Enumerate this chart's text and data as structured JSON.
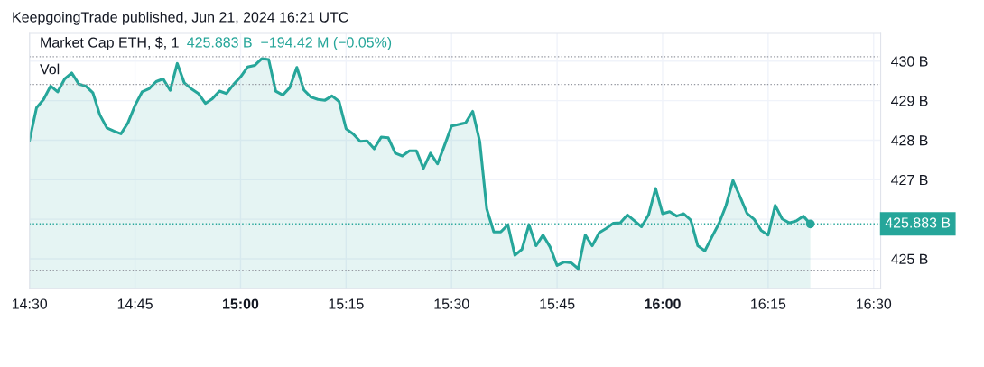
{
  "chart_data": {
    "type": "area",
    "title": "Market Cap ETH, $, 1",
    "subtitle": "425.883 B  −194.42 M (−0.05%)",
    "annotations": [
      "KeepgoingTrade published, Jun 21, 2024 16:21 UTC",
      "Vol",
      "425.883 B"
    ],
    "x": [
      "2024-06-21T14:30",
      "2024-06-21T14:31",
      "2024-06-21T14:32",
      "2024-06-21T14:33",
      "2024-06-21T14:34",
      "2024-06-21T14:35",
      "2024-06-21T14:36",
      "2024-06-21T14:37",
      "2024-06-21T14:38",
      "2024-06-21T14:39",
      "2024-06-21T14:40",
      "2024-06-21T14:41",
      "2024-06-21T14:42",
      "2024-06-21T14:43",
      "2024-06-21T14:44",
      "2024-06-21T14:45",
      "2024-06-21T14:46",
      "2024-06-21T14:47",
      "2024-06-21T14:48",
      "2024-06-21T14:49",
      "2024-06-21T14:50",
      "2024-06-21T14:51",
      "2024-06-21T14:52",
      "2024-06-21T14:53",
      "2024-06-21T14:54",
      "2024-06-21T14:55",
      "2024-06-21T14:56",
      "2024-06-21T14:57",
      "2024-06-21T14:58",
      "2024-06-21T14:59",
      "2024-06-21T15:00",
      "2024-06-21T15:01",
      "2024-06-21T15:02",
      "2024-06-21T15:03",
      "2024-06-21T15:04",
      "2024-06-21T15:05",
      "2024-06-21T15:06",
      "2024-06-21T15:07",
      "2024-06-21T15:08",
      "2024-06-21T15:09",
      "2024-06-21T15:10",
      "2024-06-21T15:11",
      "2024-06-21T15:12",
      "2024-06-21T15:13",
      "2024-06-21T15:14",
      "2024-06-21T15:15",
      "2024-06-21T15:16",
      "2024-06-21T15:17",
      "2024-06-21T15:18",
      "2024-06-21T15:19",
      "2024-06-21T15:20",
      "2024-06-21T15:21",
      "2024-06-21T15:22",
      "2024-06-21T15:23",
      "2024-06-21T15:24",
      "2024-06-21T15:25",
      "2024-06-21T15:26",
      "2024-06-21T15:27",
      "2024-06-21T15:28",
      "2024-06-21T15:29",
      "2024-06-21T15:30",
      "2024-06-21T15:31",
      "2024-06-21T15:32",
      "2024-06-21T15:33",
      "2024-06-21T15:34",
      "2024-06-21T15:35",
      "2024-06-21T15:36",
      "2024-06-21T15:37",
      "2024-06-21T15:38",
      "2024-06-21T15:39",
      "2024-06-21T15:40",
      "2024-06-21T15:41",
      "2024-06-21T15:42",
      "2024-06-21T15:43",
      "2024-06-21T15:44",
      "2024-06-21T15:45",
      "2024-06-21T15:46",
      "2024-06-21T15:47",
      "2024-06-21T15:48",
      "2024-06-21T15:49",
      "2024-06-21T15:50",
      "2024-06-21T15:51",
      "2024-06-21T15:52",
      "2024-06-21T15:53",
      "2024-06-21T15:54",
      "2024-06-21T15:55",
      "2024-06-21T15:56",
      "2024-06-21T15:57",
      "2024-06-21T15:58",
      "2024-06-21T15:59",
      "2024-06-21T16:00",
      "2024-06-21T16:01",
      "2024-06-21T16:02",
      "2024-06-21T16:03",
      "2024-06-21T16:04",
      "2024-06-21T16:05",
      "2024-06-21T16:06",
      "2024-06-21T16:07",
      "2024-06-21T16:08",
      "2024-06-21T16:09",
      "2024-06-21T16:10",
      "2024-06-21T16:11",
      "2024-06-21T16:12",
      "2024-06-21T16:13",
      "2024-06-21T16:14",
      "2024-06-21T16:15",
      "2024-06-21T16:16",
      "2024-06-21T16:17",
      "2024-06-21T16:18",
      "2024-06-21T16:19",
      "2024-06-21T16:20",
      "2024-06-21T16:21"
    ],
    "series": [
      {
        "color": "#26a69a",
        "values": [
          428.0,
          428.82,
          429.03,
          429.37,
          429.22,
          429.55,
          429.7,
          429.42,
          429.37,
          429.2,
          428.64,
          428.31,
          428.23,
          428.16,
          428.44,
          428.88,
          429.22,
          429.3,
          429.48,
          429.55,
          429.26,
          429.94,
          429.45,
          429.3,
          429.18,
          428.93,
          429.05,
          429.24,
          429.18,
          429.41,
          429.6,
          429.85,
          429.89,
          430.06,
          430.04,
          429.24,
          429.14,
          429.33,
          429.84,
          429.27,
          429.09,
          429.03,
          429.01,
          429.12,
          428.98,
          428.29,
          428.16,
          427.97,
          427.98,
          427.78,
          428.08,
          428.06,
          427.67,
          427.6,
          427.73,
          427.73,
          427.29,
          427.67,
          427.4,
          427.87,
          428.36,
          428.4,
          428.44,
          428.73,
          427.97,
          426.26,
          425.68,
          425.68,
          425.86,
          425.09,
          425.24,
          425.86,
          425.33,
          425.6,
          425.3,
          424.83,
          424.92,
          424.9,
          424.75,
          425.6,
          425.33,
          425.66,
          425.77,
          425.9,
          425.91,
          426.11,
          425.96,
          425.81,
          426.11,
          426.78,
          426.14,
          426.19,
          426.08,
          426.14,
          425.98,
          425.33,
          425.2,
          425.55,
          425.89,
          426.34,
          426.98,
          426.57,
          426.15,
          426.0,
          425.72,
          425.6,
          426.35,
          426.01,
          425.91,
          425.96,
          426.08,
          425.883
        ]
      }
    ],
    "xlim": [
      "2024-06-21T14:30",
      "2024-06-21T16:31"
    ],
    "xticks": [
      {
        "value": "2024-06-21T14:30",
        "label": "14:30"
      },
      {
        "value": "2024-06-21T14:45",
        "label": "14:45"
      },
      {
        "value": "2024-06-21T15:00",
        "label": "15:00"
      },
      {
        "value": "2024-06-21T15:15",
        "label": "15:15"
      },
      {
        "value": "2024-06-21T15:30",
        "label": "15:30"
      },
      {
        "value": "2024-06-21T15:45",
        "label": "15:45"
      },
      {
        "value": "2024-06-21T16:00",
        "label": "16:00"
      },
      {
        "value": "2024-06-21T16:15",
        "label": "16:15"
      },
      {
        "value": "2024-06-21T16:30",
        "label": "16:30"
      }
    ],
    "ylim": [
      424.25,
      430.7
    ],
    "yticks": [
      {
        "value": 425,
        "label": "425 B"
      },
      {
        "value": 426,
        "label": null
      },
      {
        "value": 427,
        "label": "427 B"
      },
      {
        "value": 428,
        "label": "428 B"
      },
      {
        "value": 429,
        "label": "429 B"
      },
      {
        "value": 430,
        "label": "430 B"
      }
    ],
    "ref_lines": [
      {
        "axis": "y",
        "value": 430.11,
        "color": "#9598a1",
        "line_style": "dotted"
      },
      {
        "axis": "y",
        "value": 429.41,
        "color": "#9598a1",
        "line_style": "dotted"
      },
      {
        "axis": "y",
        "value": 424.71,
        "color": "#9598a1",
        "line_style": "dotted"
      },
      {
        "axis": "y",
        "value": 425.883,
        "color": "#26a69a",
        "line_style": "dotted"
      }
    ],
    "grid": true,
    "legend": false
  }
}
